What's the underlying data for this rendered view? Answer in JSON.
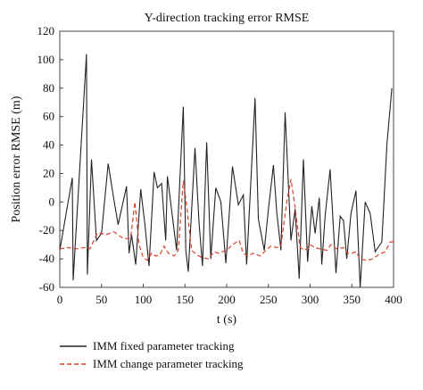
{
  "chart_data": {
    "type": "line",
    "title": "Y-direction tracking error RMSE",
    "xlabel": "t (s)",
    "ylabel": "Position error RMSE (m)",
    "xlim": [
      0,
      400
    ],
    "ylim": [
      -60,
      120
    ],
    "xticks": [
      "0",
      "50",
      "100",
      "150",
      "200",
      "250",
      "300",
      "350",
      "400"
    ],
    "yticks": [
      "-60",
      "-40",
      "-20",
      "0",
      "20",
      "40",
      "60",
      "80",
      "100",
      "120"
    ],
    "grid": false,
    "legend_position": "bottom",
    "series": [
      {
        "name": "IMM fixed parameter tracking",
        "color": "#222222",
        "style": "solid",
        "x": [
          0,
          15,
          16,
          32,
          33,
          38,
          44,
          50,
          58,
          65,
          70,
          80,
          83,
          86,
          91,
          97,
          102,
          107,
          113,
          117,
          122,
          127,
          129,
          140,
          148,
          151,
          154,
          162,
          167,
          171,
          176,
          181,
          187,
          193,
          199,
          207,
          214,
          220,
          224,
          234,
          238,
          245,
          250,
          256,
          260,
          265,
          270,
          277,
          282,
          287,
          292,
          297,
          302,
          306,
          311,
          314,
          318,
          324,
          331,
          336,
          340,
          344,
          349,
          355,
          360,
          366,
          372,
          378,
          386,
          392,
          398
        ],
        "y": [
          -34,
          17,
          -55,
          104,
          -51,
          30,
          -27,
          -22,
          27,
          1,
          -16,
          11,
          -36,
          -23,
          -44,
          9,
          -16,
          -45,
          21,
          10,
          13,
          -27,
          18,
          -34,
          67,
          -34,
          -49,
          38,
          -15,
          -45,
          42,
          -40,
          10,
          0,
          -43,
          25,
          -2,
          5,
          -44,
          73,
          -12,
          -34,
          -5,
          26,
          -7,
          -34,
          63,
          -27,
          -5,
          -54,
          30,
          -42,
          -3,
          -22,
          3,
          -44,
          -10,
          23,
          -50,
          -10,
          -13,
          -40,
          -8,
          8,
          -60,
          0,
          -8,
          -35,
          -28,
          40,
          80
        ]
      },
      {
        "name": "IMM change parameter tracking",
        "color": "#d9432b",
        "style": "dashed",
        "x": [
          0,
          10,
          20,
          30,
          36,
          40,
          45,
          50,
          55,
          60,
          65,
          72,
          78,
          85,
          90,
          95,
          100,
          105,
          110,
          115,
          120,
          125,
          130,
          137,
          142,
          148,
          152,
          158,
          164,
          170,
          178,
          185,
          190,
          195,
          200,
          207,
          215,
          220,
          225,
          232,
          240,
          247,
          253,
          260,
          265,
          272,
          277,
          282,
          288,
          294,
          300,
          306,
          312,
          320,
          325,
          332,
          340,
          345,
          350,
          355,
          360,
          368,
          375,
          382,
          390,
          396,
          402
        ],
        "y": [
          -33,
          -32,
          -33,
          -32,
          -33,
          -28,
          -22,
          -22,
          -23,
          -22,
          -21,
          -24,
          -26,
          -25,
          0,
          -30,
          -39,
          -41,
          -36,
          -38,
          -37,
          -31,
          -36,
          -38,
          -34,
          15,
          -2,
          -34,
          -37,
          -39,
          -40,
          -35,
          -36,
          -35,
          -34,
          -30,
          -27,
          -36,
          -38,
          -36,
          -38,
          -34,
          -31,
          -32,
          -31,
          0,
          16,
          -4,
          -32,
          -34,
          -30,
          -32,
          -33,
          -34,
          -30,
          -33,
          -32,
          -36,
          -36,
          -35,
          -40,
          -41,
          -40,
          -37,
          -35,
          -28,
          -28
        ]
      }
    ]
  }
}
